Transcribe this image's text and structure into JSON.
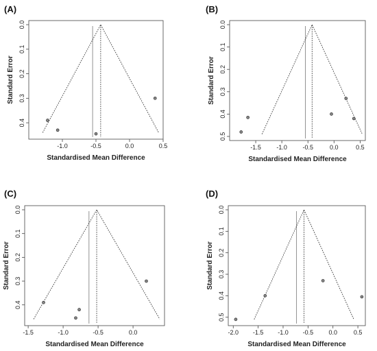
{
  "chart_data": [
    {
      "type": "scatter",
      "panel_label": "(A)",
      "xlabel": "Standardised Mean Difference",
      "ylabel": "Standard Error",
      "xlim": [
        -1.5,
        0.5
      ],
      "ylim": [
        0.45,
        0.0
      ],
      "x_ticks": [
        -1.0,
        -0.5,
        0.0,
        0.5
      ],
      "x_tick_labels": [
        "-1.0",
        "-0.5",
        "0.0",
        "0.5"
      ],
      "y_ticks": [
        0.0,
        0.1,
        0.2,
        0.3,
        0.4
      ],
      "y_tick_labels": [
        "0.0",
        "0.1",
        "0.2",
        "0.3",
        "0.4"
      ],
      "pooled_random": -0.43,
      "pooled_fixed": -0.55,
      "funnel_se_max": 0.44,
      "points": [
        {
          "x": -1.22,
          "y": 0.39
        },
        {
          "x": -1.07,
          "y": 0.43
        },
        {
          "x": -0.5,
          "y": 0.445
        },
        {
          "x": 0.38,
          "y": 0.3
        }
      ]
    },
    {
      "type": "scatter",
      "panel_label": "(B)",
      "xlabel": "Standardised Mean Difference",
      "ylabel": "Standard Error",
      "xlim": [
        -2.0,
        0.6
      ],
      "ylim": [
        0.5,
        0.0
      ],
      "x_ticks": [
        -1.5,
        -1.0,
        -0.5,
        0.0,
        0.5
      ],
      "x_tick_labels": [
        "-1.5",
        "-1.0",
        "-0.5",
        "0.0",
        "0.5"
      ],
      "y_ticks": [
        0.0,
        0.1,
        0.2,
        0.3,
        0.4,
        0.5
      ],
      "y_tick_labels": [
        "0.0",
        "0.1",
        "0.2",
        "0.3",
        "0.4",
        "0.5"
      ],
      "pooled_random": -0.42,
      "pooled_fixed": -0.55,
      "funnel_se_max": 0.49,
      "points": [
        {
          "x": -1.78,
          "y": 0.48
        },
        {
          "x": -1.65,
          "y": 0.415
        },
        {
          "x": -0.05,
          "y": 0.4
        },
        {
          "x": 0.23,
          "y": 0.33
        },
        {
          "x": 0.38,
          "y": 0.42
        }
      ]
    },
    {
      "type": "scatter",
      "panel_label": "(C)",
      "xlabel": "Standardised Mean Difference",
      "ylabel": "Standard Error",
      "xlim": [
        -1.55,
        0.45
      ],
      "ylim": [
        0.47,
        0.0
      ],
      "x_ticks": [
        -1.5,
        -1.0,
        -0.5,
        0.0
      ],
      "x_tick_labels": [
        "-1.5",
        "-1.0",
        "-0.5",
        "0.0"
      ],
      "y_ticks": [
        0.0,
        0.1,
        0.2,
        0.3,
        0.4
      ],
      "y_tick_labels": [
        "0.0",
        "0.1",
        "0.2",
        "0.3",
        "0.4"
      ],
      "pooled_random": -0.52,
      "pooled_fixed": -0.63,
      "funnel_se_max": 0.46,
      "points": [
        {
          "x": -1.28,
          "y": 0.39
        },
        {
          "x": -0.82,
          "y": 0.455
        },
        {
          "x": -0.77,
          "y": 0.42
        },
        {
          "x": 0.19,
          "y": 0.3
        }
      ]
    },
    {
      "type": "scatter",
      "panel_label": "(D)",
      "xlabel": "Standardised Mean Difference",
      "ylabel": "Standard Error",
      "xlim": [
        -2.1,
        0.65
      ],
      "ylim": [
        0.52,
        0.0
      ],
      "x_ticks": [
        -2.0,
        -1.5,
        -1.0,
        -0.5,
        0.0,
        0.5
      ],
      "x_tick_labels": [
        "-2.0",
        "-1.5",
        "-1.0",
        "-0.5",
        "0.0",
        "0.5"
      ],
      "y_ticks": [
        0.0,
        0.1,
        0.2,
        0.3,
        0.4,
        0.5
      ],
      "y_tick_labels": [
        "0.0",
        "0.1",
        "0.2",
        "0.3",
        "0.4",
        "0.5"
      ],
      "pooled_random": -0.58,
      "pooled_fixed": -0.73,
      "funnel_se_max": 0.51,
      "points": [
        {
          "x": -1.95,
          "y": 0.51
        },
        {
          "x": -1.36,
          "y": 0.4
        },
        {
          "x": -0.2,
          "y": 0.33
        },
        {
          "x": 0.58,
          "y": 0.405
        }
      ]
    }
  ]
}
